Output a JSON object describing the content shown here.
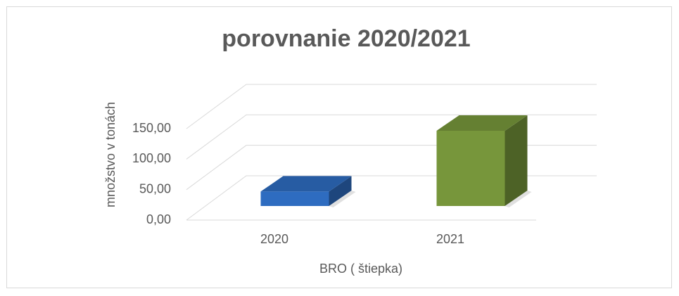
{
  "chart_data": {
    "type": "bar3d",
    "title": "porovnanie 2020/2021",
    "x_label": "BRO ( štiepka)",
    "y_label": "množstvo v tonách",
    "categories": [
      "2020",
      "2021"
    ],
    "values": [
      25,
      130
    ],
    "colors": [
      "#2e6cc0",
      "#77963b"
    ],
    "ylim": [
      0,
      150
    ],
    "yticks": [
      {
        "value": 0,
        "label": "0,00"
      },
      {
        "value": 50,
        "label": "50,00"
      },
      {
        "value": 100,
        "label": "100,00"
      },
      {
        "value": 150,
        "label": "150,00"
      }
    ],
    "grid": true
  }
}
